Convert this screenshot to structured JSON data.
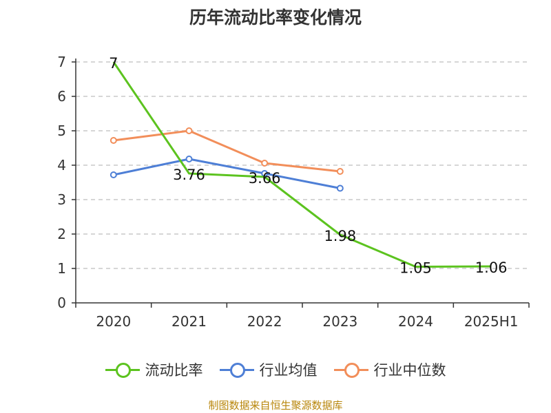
{
  "chart_data": {
    "type": "line",
    "title": "历年流动比率变化情况",
    "categories": [
      "2020",
      "2021",
      "2022",
      "2023",
      "2024",
      "2025H1"
    ],
    "ylim": [
      0,
      7
    ],
    "yticks": [
      "0",
      "1",
      "2",
      "3",
      "4",
      "5",
      "6",
      "7"
    ],
    "grid": true,
    "legend_position": "bottom",
    "series": [
      {
        "name": "流动比率",
        "color": "#5cc31f",
        "values": [
          7,
          3.76,
          3.66,
          1.98,
          1.05,
          1.06
        ],
        "labels": [
          "7",
          "3.76",
          "3.66",
          "1.98",
          "1.05",
          "1.06"
        ],
        "show_markers": false
      },
      {
        "name": "行业均值",
        "color": "#4e7fd6",
        "values": [
          3.72,
          4.18,
          3.76,
          3.33,
          null,
          null
        ],
        "show_markers": true
      },
      {
        "name": "行业中位数",
        "color": "#f28e5a",
        "values": [
          4.72,
          5.0,
          4.06,
          3.82,
          null,
          null
        ],
        "show_markers": true
      }
    ]
  },
  "source_note": "制图数据来自恒生聚源数据库"
}
